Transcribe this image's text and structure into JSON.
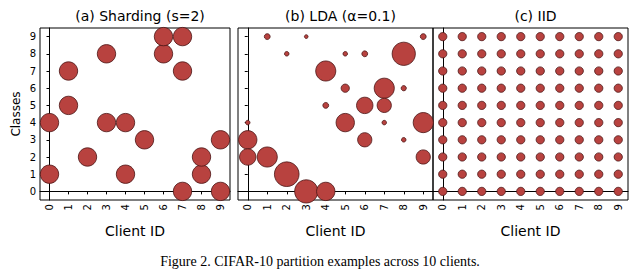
{
  "caption": "Figure 2. CIFAR-10 partition examples across 10 clients.",
  "chart_data": [
    {
      "type": "scatter",
      "title": "(a) Sharding (s=2)",
      "x_label": "Client ID",
      "y_label": "Classes",
      "color": "#b8423f",
      "marker": "circle",
      "tick_labels": true,
      "grid": false,
      "xlim": [
        -0.5,
        9.5
      ],
      "ylim": [
        -0.5,
        9.5
      ],
      "xticks": [
        0,
        1,
        2,
        3,
        4,
        5,
        6,
        7,
        8,
        9
      ],
      "yticks": [
        0,
        1,
        2,
        3,
        4,
        5,
        6,
        7,
        8,
        9
      ],
      "x": [
        0,
        0,
        1,
        1,
        2,
        3,
        3,
        4,
        4,
        5,
        6,
        6,
        7,
        7,
        7,
        8,
        8,
        9,
        9
      ],
      "y": [
        1,
        4,
        5,
        7,
        2,
        4,
        8,
        1,
        4,
        3,
        8,
        9,
        9,
        7,
        0,
        1,
        2,
        0,
        3
      ],
      "sizes": [
        0.5,
        0.5,
        0.5,
        0.5,
        0.5,
        0.5,
        0.5,
        0.5,
        0.5,
        0.5,
        0.5,
        0.5,
        0.5,
        0.5,
        0.5,
        0.5,
        0.5,
        0.5,
        0.5
      ]
    },
    {
      "type": "scatter",
      "title": "(b) LDA (α=0.1)",
      "x_label": "Client ID",
      "color": "#b8423f",
      "marker": "circle",
      "tick_labels": "x",
      "grid": false,
      "xlim": [
        -0.5,
        9.5
      ],
      "ylim": [
        -0.5,
        9.5
      ],
      "xticks": [
        0,
        1,
        2,
        3,
        4,
        5,
        6,
        7,
        8,
        9
      ],
      "yticks": [
        0,
        1,
        2,
        3,
        4,
        5,
        6,
        7,
        8,
        9
      ],
      "x": [
        0,
        0,
        0,
        1,
        1,
        2,
        2,
        3,
        3,
        4,
        4,
        4,
        5,
        5,
        5,
        6,
        6,
        6,
        7,
        7,
        7,
        8,
        8,
        8,
        9,
        9,
        9
      ],
      "y": [
        3,
        2,
        4,
        2,
        9,
        1,
        8,
        0,
        9,
        0,
        7,
        5,
        4,
        8,
        6,
        5,
        3,
        8,
        6,
        5,
        4,
        8,
        6,
        3,
        4,
        2,
        9
      ],
      "sizes": [
        0.5,
        0.4,
        0.03,
        0.6,
        0.05,
        0.9,
        0.03,
        0.8,
        0.02,
        0.5,
        0.6,
        0.05,
        0.5,
        0.03,
        0.1,
        0.4,
        0.3,
        0.05,
        0.6,
        0.3,
        0.03,
        0.8,
        0.04,
        0.03,
        0.6,
        0.3,
        0.05
      ]
    },
    {
      "type": "scatter",
      "title": "(c) IID",
      "x_label": "Client ID",
      "color": "#b8423f",
      "marker": "circle",
      "tick_labels": "x",
      "grid": false,
      "xlim": [
        -0.5,
        9.5
      ],
      "ylim": [
        -0.5,
        9.5
      ],
      "xticks": [
        0,
        1,
        2,
        3,
        4,
        5,
        6,
        7,
        8,
        9
      ],
      "yticks": [
        0,
        1,
        2,
        3,
        4,
        5,
        6,
        7,
        8,
        9
      ],
      "x": [
        0,
        0,
        0,
        0,
        0,
        0,
        0,
        0,
        0,
        0,
        1,
        1,
        1,
        1,
        1,
        1,
        1,
        1,
        1,
        1,
        2,
        2,
        2,
        2,
        2,
        2,
        2,
        2,
        2,
        2,
        3,
        3,
        3,
        3,
        3,
        3,
        3,
        3,
        3,
        3,
        4,
        4,
        4,
        4,
        4,
        4,
        4,
        4,
        4,
        4,
        5,
        5,
        5,
        5,
        5,
        5,
        5,
        5,
        5,
        5,
        6,
        6,
        6,
        6,
        6,
        6,
        6,
        6,
        6,
        6,
        7,
        7,
        7,
        7,
        7,
        7,
        7,
        7,
        7,
        7,
        8,
        8,
        8,
        8,
        8,
        8,
        8,
        8,
        8,
        8,
        9,
        9,
        9,
        9,
        9,
        9,
        9,
        9,
        9,
        9
      ],
      "y": [
        0,
        1,
        2,
        3,
        4,
        5,
        6,
        7,
        8,
        9,
        0,
        1,
        2,
        3,
        4,
        5,
        6,
        7,
        8,
        9,
        0,
        1,
        2,
        3,
        4,
        5,
        6,
        7,
        8,
        9,
        0,
        1,
        2,
        3,
        4,
        5,
        6,
        7,
        8,
        9,
        0,
        1,
        2,
        3,
        4,
        5,
        6,
        7,
        8,
        9,
        0,
        1,
        2,
        3,
        4,
        5,
        6,
        7,
        8,
        9,
        0,
        1,
        2,
        3,
        4,
        5,
        6,
        7,
        8,
        9,
        0,
        1,
        2,
        3,
        4,
        5,
        6,
        7,
        8,
        9,
        0,
        1,
        2,
        3,
        4,
        5,
        6,
        7,
        8,
        9,
        0,
        1,
        2,
        3,
        4,
        5,
        6,
        7,
        8,
        9
      ],
      "sizes": [
        0.1,
        0.1,
        0.1,
        0.1,
        0.1,
        0.1,
        0.1,
        0.1,
        0.1,
        0.1,
        0.1,
        0.1,
        0.1,
        0.1,
        0.1,
        0.1,
        0.1,
        0.1,
        0.1,
        0.1,
        0.1,
        0.1,
        0.1,
        0.1,
        0.1,
        0.1,
        0.1,
        0.1,
        0.1,
        0.1,
        0.1,
        0.1,
        0.1,
        0.1,
        0.1,
        0.1,
        0.1,
        0.1,
        0.1,
        0.1,
        0.1,
        0.1,
        0.1,
        0.1,
        0.1,
        0.1,
        0.1,
        0.1,
        0.1,
        0.1,
        0.1,
        0.1,
        0.1,
        0.1,
        0.1,
        0.1,
        0.1,
        0.1,
        0.1,
        0.1,
        0.1,
        0.1,
        0.1,
        0.1,
        0.1,
        0.1,
        0.1,
        0.1,
        0.1,
        0.1,
        0.1,
        0.1,
        0.1,
        0.1,
        0.1,
        0.1,
        0.1,
        0.1,
        0.1,
        0.1,
        0.1,
        0.1,
        0.1,
        0.1,
        0.1,
        0.1,
        0.1,
        0.1,
        0.1,
        0.1,
        0.1,
        0.1,
        0.1,
        0.1,
        0.1,
        0.1,
        0.1,
        0.1,
        0.1,
        0.1
      ]
    }
  ]
}
